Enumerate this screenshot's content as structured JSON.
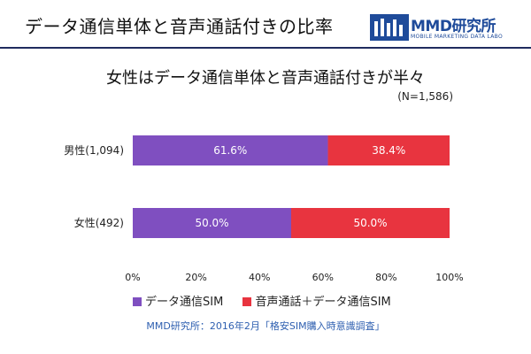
{
  "header": {
    "title": "データ通信単体と音声通話付きの比率",
    "logo_name": "MMD研究所",
    "logo_sub": "MOBILE MARKETING DATA LABO"
  },
  "subtitle": "女性はデータ通信単体と音声通話付きが半々",
  "n_label": "(N=1,586)",
  "source": "MMD研究所：2016年2月「格安SIM購入時意識調査」",
  "colors": {
    "data_sim": "#7f4fc0",
    "voice_sim": "#e8343f",
    "brand": "#1f4b9a"
  },
  "chart_data": {
    "type": "bar",
    "orientation": "horizontal",
    "stacked": true,
    "percent_stacked": true,
    "categories": [
      "男性(1,094)",
      "女性(492)"
    ],
    "series": [
      {
        "name": "データ通信SIM",
        "values": [
          61.6,
          50.0
        ],
        "labels": [
          "61.6%",
          "50.0%"
        ]
      },
      {
        "name": "音声通話＋データ通信SIM",
        "values": [
          38.4,
          50.0
        ],
        "labels": [
          "38.4%",
          "50.0%"
        ]
      }
    ],
    "xlim": [
      0,
      100
    ],
    "x_ticks": [
      "0%",
      "20%",
      "40%",
      "60%",
      "80%",
      "100%"
    ],
    "grid": false,
    "legend_position": "bottom-left"
  }
}
